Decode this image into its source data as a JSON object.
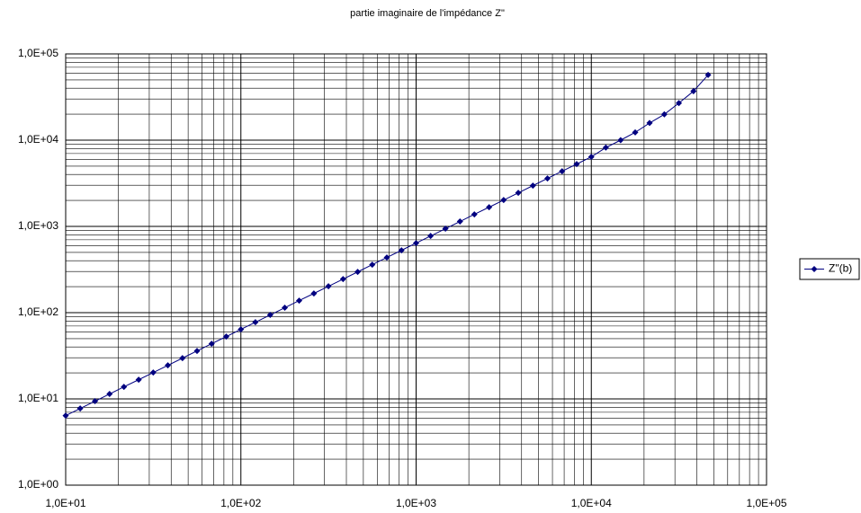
{
  "chart_data": {
    "type": "line",
    "title": "partie imaginaire de l'impédance  Z\"",
    "x": [
      10,
      12.1,
      14.7,
      17.8,
      21.5,
      26.1,
      31.6,
      38.3,
      46.4,
      56.2,
      68.1,
      82.5,
      100,
      121,
      147,
      178,
      215,
      261,
      316,
      383,
      464,
      562,
      681,
      825,
      1000,
      1210,
      1470,
      1780,
      2150,
      2610,
      3160,
      3830,
      4640,
      5620,
      6810,
      8250,
      10000,
      12100,
      14700,
      17800,
      21500,
      26100,
      31600,
      38300,
      46400
    ],
    "series": [
      {
        "name": "Z\"(b)",
        "color": "#000080",
        "values": [
          6.4,
          7.74,
          9.41,
          11.4,
          13.8,
          16.7,
          20.2,
          24.5,
          29.7,
          36.0,
          43.6,
          52.8,
          64,
          77.4,
          94.1,
          114,
          138,
          167,
          202,
          245,
          297,
          360,
          436,
          528,
          640,
          774,
          941,
          1140,
          1380,
          1670,
          2020,
          2450,
          2970,
          3600,
          4360,
          5280,
          6400,
          8200,
          10000,
          12300,
          15800,
          19900,
          26900,
          37000,
          57000
        ]
      }
    ],
    "xlim": [
      10,
      100000
    ],
    "ylim": [
      1,
      100000
    ],
    "xticks": [
      {
        "value": 10,
        "label": "1,0E+01"
      },
      {
        "value": 100,
        "label": "1,0E+02"
      },
      {
        "value": 1000,
        "label": "1,0E+03"
      },
      {
        "value": 10000,
        "label": "1,0E+04"
      },
      {
        "value": 100000,
        "label": "1,0E+05"
      }
    ],
    "yticks": [
      {
        "value": 1,
        "label": "1,0E+00"
      },
      {
        "value": 10,
        "label": "1,0E+01"
      },
      {
        "value": 100,
        "label": "1,0E+02"
      },
      {
        "value": 1000,
        "label": "1,0E+03"
      },
      {
        "value": 10000,
        "label": "1,0E+04"
      },
      {
        "value": 100000,
        "label": "1,0E+05"
      }
    ],
    "xscale": "log",
    "yscale": "log",
    "grid": true,
    "minor_grid": true,
    "legend": "right"
  }
}
